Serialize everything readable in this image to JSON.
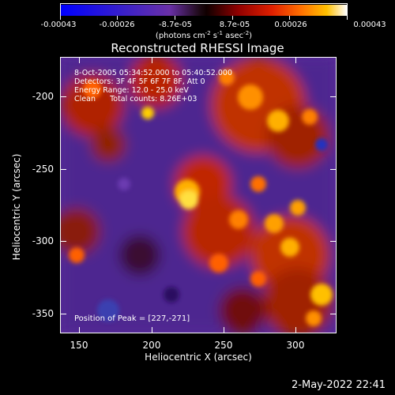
{
  "colorbar": {
    "tick_labels": [
      "-0.00043",
      "-0.00026",
      "-8.7e-05",
      "8.7e-05",
      "0.00026",
      "0.00043"
    ],
    "units_text": "(photons cm",
    "units_exp1": "-2",
    "units_mid1": " s",
    "units_exp2": "-1",
    "units_mid2": " asec",
    "units_exp3": "-2",
    "units_end": ")"
  },
  "plot": {
    "title": "Reconstructed RHESSI Image",
    "info": {
      "time_range": "8-Oct-2005 05:34:52.000 to 05:40:52.000",
      "detectors": "Detectors: 3F 4F 5F 6F 7F 8F, Att 0",
      "energy": "Energy Range: 12.0 - 25.0 keV",
      "algorithm": "Clean      Total counts: 8.26E+03"
    },
    "peak": "Position of Peak = [227,-271]",
    "x_axis": {
      "label": "Heliocentric X (arcsec)",
      "ticks": [
        "150",
        "200",
        "250",
        "300"
      ]
    },
    "y_axis": {
      "label": "Heliocentric Y (arcsec)",
      "ticks": [
        "-200",
        "-250",
        "-300",
        "-350"
      ]
    }
  },
  "colors": {
    "background": "#000000",
    "colorscale": [
      "#0000ff",
      "#4020c0",
      "#6a2da0",
      "#3a1020",
      "#000000",
      "#7a0000",
      "#d01000",
      "#ff5a00",
      "#ffb000",
      "#ffffff"
    ]
  },
  "footer": {
    "timestamp": "2-May-2022 22:41"
  }
}
